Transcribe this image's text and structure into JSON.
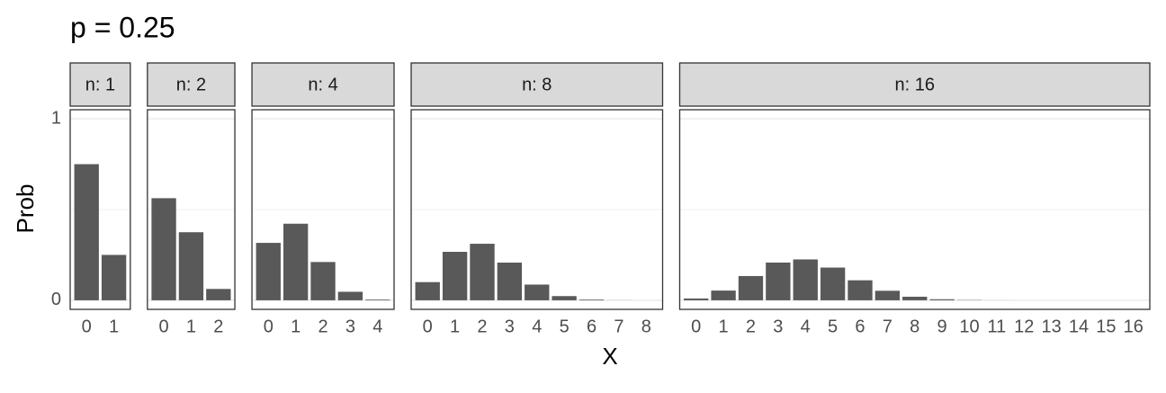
{
  "title": "p = 0.25",
  "x_label": "X",
  "y_label": "Prob",
  "chart_data": [
    {
      "type": "bar",
      "title": "n: 1",
      "categories": [
        0,
        1
      ],
      "values": [
        0.75,
        0.25
      ],
      "color": "#595959",
      "ylim": [
        -0.05,
        1.05
      ],
      "yticks": [
        0,
        1
      ],
      "yminorticks": [
        0.5
      ],
      "grid": true
    },
    {
      "type": "bar",
      "title": "n: 2",
      "categories": [
        0,
        1,
        2
      ],
      "values": [
        0.5625,
        0.375,
        0.0625
      ],
      "color": "#595959",
      "ylim": [
        -0.05,
        1.05
      ],
      "yticks": [
        0,
        1
      ],
      "yminorticks": [
        0.5
      ],
      "grid": true
    },
    {
      "type": "bar",
      "title": "n: 4",
      "categories": [
        0,
        1,
        2,
        3,
        4
      ],
      "values": [
        0.3164,
        0.4219,
        0.2109,
        0.0469,
        0.0039
      ],
      "color": "#595959",
      "ylim": [
        -0.05,
        1.05
      ],
      "yticks": [
        0,
        1
      ],
      "yminorticks": [
        0.5
      ],
      "grid": true
    },
    {
      "type": "bar",
      "title": "n: 8",
      "categories": [
        0,
        1,
        2,
        3,
        4,
        5,
        6,
        7,
        8
      ],
      "values": [
        0.1001,
        0.267,
        0.3115,
        0.2076,
        0.0865,
        0.0231,
        0.0038,
        0.0004,
        0
      ],
      "color": "#595959",
      "ylim": [
        -0.05,
        1.05
      ],
      "yticks": [
        0,
        1
      ],
      "yminorticks": [
        0.5
      ],
      "grid": true
    },
    {
      "type": "bar",
      "title": "n: 16",
      "categories": [
        0,
        1,
        2,
        3,
        4,
        5,
        6,
        7,
        8,
        9,
        10,
        11,
        12,
        13,
        14,
        15,
        16
      ],
      "values": [
        0.01,
        0.0535,
        0.1336,
        0.2079,
        0.2252,
        0.1802,
        0.1101,
        0.0524,
        0.0197,
        0.0058,
        0.0014,
        0.0002,
        0,
        0,
        0,
        0,
        0
      ],
      "color": "#595959",
      "ylim": [
        -0.05,
        1.05
      ],
      "yticks": [
        0,
        1
      ],
      "yminorticks": [
        0.5
      ],
      "grid": true
    }
  ]
}
